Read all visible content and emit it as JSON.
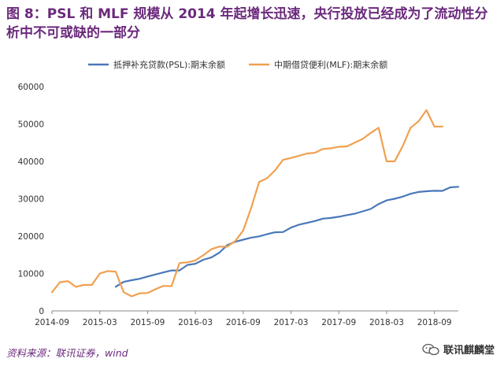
{
  "title": "图 8：PSL 和 MLF 规模从 2014 年起增长迅速，央行投放已经成为了流动性分析中不可或缺的一部分",
  "source": "资料来源：联讯证券，wind",
  "watermark": "联讯麒麟堂",
  "watermark_icon": "wechat-icon",
  "chart_data": {
    "type": "line",
    "title": "",
    "xlabel": "",
    "ylabel": "",
    "ylim": [
      0,
      60000
    ],
    "yticks": [
      0,
      10000,
      20000,
      30000,
      40000,
      50000,
      60000
    ],
    "xlim": [
      "2014-09",
      "2018-12"
    ],
    "xticks": [
      "2014-09",
      "2015-03",
      "2015-09",
      "2016-03",
      "2016-09",
      "2017-03",
      "2017-09",
      "2018-03",
      "2018-09"
    ],
    "grid": false,
    "legend": "top",
    "series": [
      {
        "name": "抵押补充贷款(PSL):期末余额",
        "color": "#4a78b8",
        "points": [
          [
            "2015-05",
            6459
          ],
          [
            "2015-06",
            7769
          ],
          [
            "2015-07",
            8205
          ],
          [
            "2015-08",
            8586
          ],
          [
            "2015-09",
            9191
          ],
          [
            "2015-10",
            9745
          ],
          [
            "2015-11",
            10286
          ],
          [
            "2015-12",
            10812
          ],
          [
            "2016-01",
            10812
          ],
          [
            "2016-02",
            12296
          ],
          [
            "2016-03",
            12606
          ],
          [
            "2016-04",
            13690
          ],
          [
            "2016-05",
            14300
          ],
          [
            "2016-06",
            15573
          ],
          [
            "2016-07",
            17603
          ],
          [
            "2016-08",
            18480
          ],
          [
            "2016-09",
            19063
          ],
          [
            "2016-10",
            19609
          ],
          [
            "2016-11",
            19931
          ],
          [
            "2016-12",
            20526
          ],
          [
            "2017-01",
            21031
          ],
          [
            "2017-02",
            21088
          ],
          [
            "2017-03",
            22274
          ],
          [
            "2017-04",
            23051
          ],
          [
            "2017-05",
            23542
          ],
          [
            "2017-06",
            24032
          ],
          [
            "2017-07",
            24670
          ],
          [
            "2017-08",
            24863
          ],
          [
            "2017-09",
            25170
          ],
          [
            "2017-10",
            25619
          ],
          [
            "2017-11",
            26010
          ],
          [
            "2017-12",
            26635
          ],
          [
            "2018-01",
            27255
          ],
          [
            "2018-02",
            28591
          ],
          [
            "2018-03",
            29557
          ],
          [
            "2018-04",
            30000
          ],
          [
            "2018-05",
            30537
          ],
          [
            "2018-06",
            31335
          ],
          [
            "2018-07",
            31807
          ],
          [
            "2018-08",
            32004
          ],
          [
            "2018-09",
            32129
          ],
          [
            "2018-10",
            32113
          ],
          [
            "2018-11",
            33044
          ],
          [
            "2018-12",
            33200
          ]
        ]
      },
      {
        "name": "中期借贷便利(MLF):期末余额",
        "color": "#f0a050",
        "points": [
          [
            "2014-09",
            5000
          ],
          [
            "2014-10",
            7690
          ],
          [
            "2014-11",
            7950
          ],
          [
            "2014-12",
            6450
          ],
          [
            "2015-01",
            6950
          ],
          [
            "2015-02",
            6950
          ],
          [
            "2015-03",
            10000
          ],
          [
            "2015-04",
            10658
          ],
          [
            "2015-05",
            10500
          ],
          [
            "2015-06",
            5000
          ],
          [
            "2015-07",
            3900
          ],
          [
            "2015-08",
            4700
          ],
          [
            "2015-09",
            4800
          ],
          [
            "2015-10",
            5800
          ],
          [
            "2015-11",
            6700
          ],
          [
            "2015-12",
            6600
          ],
          [
            "2016-01",
            12800
          ],
          [
            "2016-02",
            13000
          ],
          [
            "2016-03",
            13500
          ],
          [
            "2016-04",
            14900
          ],
          [
            "2016-05",
            16500
          ],
          [
            "2016-06",
            17200
          ],
          [
            "2016-07",
            17200
          ],
          [
            "2016-08",
            18700
          ],
          [
            "2016-09",
            21500
          ],
          [
            "2016-10",
            27500
          ],
          [
            "2016-11",
            34500
          ],
          [
            "2016-12",
            35500
          ],
          [
            "2017-01",
            37600
          ],
          [
            "2017-02",
            40400
          ],
          [
            "2017-03",
            40900
          ],
          [
            "2017-04",
            41500
          ],
          [
            "2017-05",
            42100
          ],
          [
            "2017-06",
            42300
          ],
          [
            "2017-07",
            43300
          ],
          [
            "2017-08",
            43500
          ],
          [
            "2017-09",
            43900
          ],
          [
            "2017-10",
            44000
          ],
          [
            "2017-11",
            45000
          ],
          [
            "2017-12",
            46000
          ],
          [
            "2018-01",
            47600
          ],
          [
            "2018-02",
            49000
          ],
          [
            "2018-03",
            40000
          ],
          [
            "2018-04",
            40000
          ],
          [
            "2018-05",
            44000
          ],
          [
            "2018-06",
            49000
          ],
          [
            "2018-07",
            50700
          ],
          [
            "2018-08",
            53700
          ],
          [
            "2018-09",
            49300
          ],
          [
            "2018-10",
            49300
          ]
        ]
      }
    ]
  }
}
